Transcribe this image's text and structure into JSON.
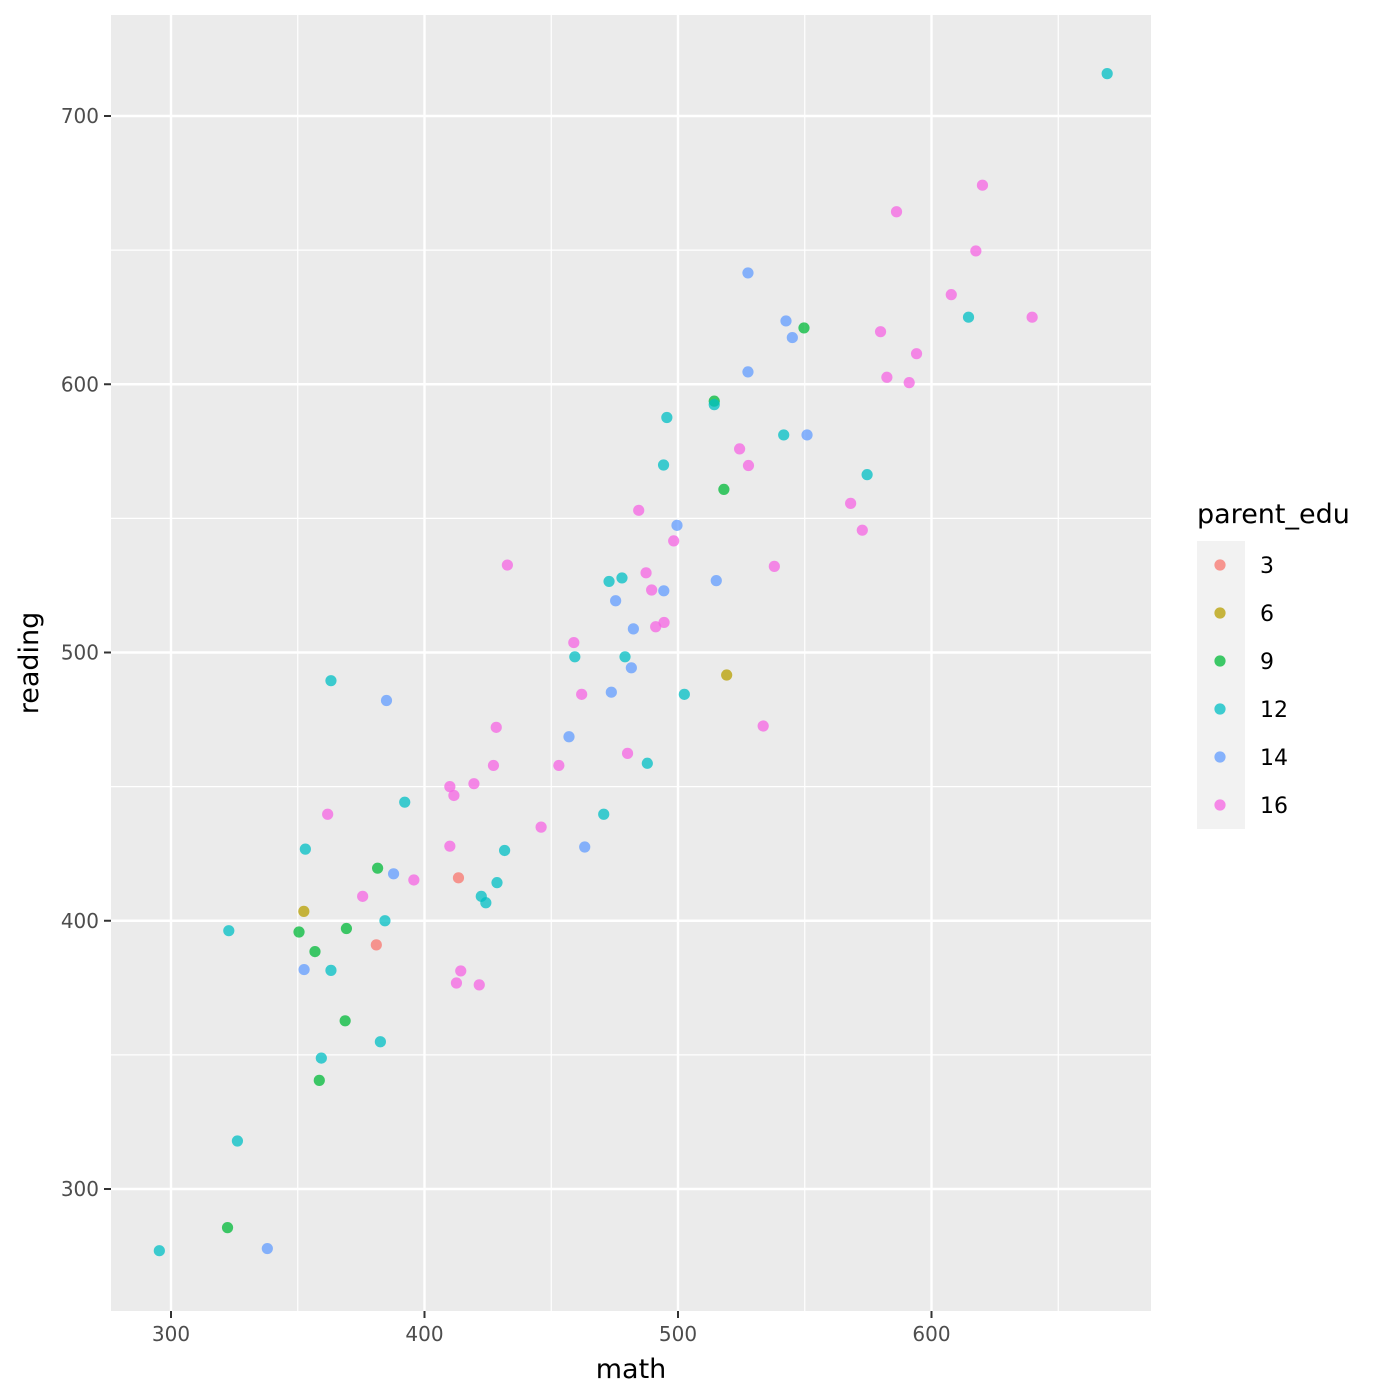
{
  "chart_data": {
    "type": "scatter",
    "xlabel": "math",
    "ylabel": "reading",
    "xlim": [
      277,
      686
    ],
    "ylim": [
      258,
      736
    ],
    "x_ticks": [
      300,
      400,
      500,
      600
    ],
    "y_ticks": [
      300,
      400,
      500,
      600,
      700
    ],
    "grid": true,
    "legend": {
      "title": "parent_edu",
      "placement": "right",
      "entries": [
        {
          "label": "3",
          "color": "#F8766D"
        },
        {
          "label": "6",
          "color": "#B79F00"
        },
        {
          "label": "9",
          "color": "#00BA38"
        },
        {
          "label": "12",
          "color": "#00BFC4"
        },
        {
          "label": "14",
          "color": "#619CFF"
        },
        {
          "label": "16",
          "color": "#F564E3"
        }
      ]
    },
    "series": [
      {
        "name": "3",
        "color": "#F8766D",
        "points": [
          [
            413.4,
            416.0
          ],
          [
            381.0,
            391.0
          ]
        ]
      },
      {
        "name": "6",
        "color": "#B79F00",
        "points": [
          [
            352.4,
            403.5
          ],
          [
            519.2,
            491.6
          ]
        ]
      },
      {
        "name": "9",
        "color": "#00BA38",
        "points": [
          [
            350.5,
            395.8
          ],
          [
            356.8,
            388.5
          ],
          [
            369.2,
            397.1
          ],
          [
            381.5,
            419.6
          ],
          [
            368.7,
            362.7
          ],
          [
            358.5,
            340.5
          ],
          [
            322.3,
            285.6
          ],
          [
            514.3,
            593.7
          ],
          [
            518.1,
            560.8
          ],
          [
            549.7,
            621.0
          ]
        ]
      },
      {
        "name": "12",
        "color": "#00BFC4",
        "points": [
          [
            295.4,
            277.0
          ],
          [
            326.2,
            317.9
          ],
          [
            322.8,
            396.3
          ],
          [
            353.0,
            426.7
          ],
          [
            363.1,
            489.5
          ],
          [
            363.1,
            381.5
          ],
          [
            359.3,
            348.8
          ],
          [
            382.6,
            354.9
          ],
          [
            384.4,
            400.0
          ],
          [
            392.2,
            444.2
          ],
          [
            422.4,
            409.1
          ],
          [
            424.2,
            406.7
          ],
          [
            428.6,
            414.2
          ],
          [
            431.6,
            426.2
          ],
          [
            459.3,
            498.4
          ],
          [
            470.7,
            439.7
          ],
          [
            472.8,
            526.5
          ],
          [
            477.9,
            527.8
          ],
          [
            479.1,
            498.4
          ],
          [
            487.9,
            458.7
          ],
          [
            494.3,
            569.9
          ],
          [
            495.6,
            587.6
          ],
          [
            502.5,
            484.4
          ],
          [
            514.3,
            592.4
          ],
          [
            541.7,
            581.1
          ],
          [
            574.6,
            566.3
          ],
          [
            614.6,
            625.0
          ],
          [
            669.3,
            715.8
          ]
        ]
      },
      {
        "name": "14",
        "color": "#619CFF",
        "points": [
          [
            338.0,
            277.8
          ],
          [
            352.5,
            381.8
          ],
          [
            385.0,
            482.1
          ],
          [
            387.8,
            417.5
          ],
          [
            457.0,
            468.6
          ],
          [
            463.2,
            427.5
          ],
          [
            473.7,
            485.2
          ],
          [
            475.4,
            519.3
          ],
          [
            481.6,
            494.3
          ],
          [
            482.4,
            508.8
          ],
          [
            494.4,
            523.0
          ],
          [
            499.6,
            547.4
          ],
          [
            515.1,
            526.8
          ],
          [
            527.6,
            641.5
          ],
          [
            527.6,
            604.6
          ],
          [
            542.6,
            623.6
          ],
          [
            545.1,
            617.4
          ],
          [
            550.9,
            581.1
          ]
        ]
      },
      {
        "name": "16",
        "color": "#F564E3",
        "points": [
          [
            361.8,
            439.7
          ],
          [
            375.6,
            409.1
          ],
          [
            395.8,
            415.2
          ],
          [
            410.0,
            450.0
          ],
          [
            410.0,
            427.8
          ],
          [
            411.6,
            446.7
          ],
          [
            412.6,
            376.8
          ],
          [
            414.3,
            381.3
          ],
          [
            419.5,
            451.1
          ],
          [
            421.6,
            376.1
          ],
          [
            427.2,
            457.9
          ],
          [
            428.3,
            472.1
          ],
          [
            432.7,
            532.6
          ],
          [
            446.0,
            434.9
          ],
          [
            453.0,
            457.9
          ],
          [
            458.9,
            503.7
          ],
          [
            462.0,
            484.4
          ],
          [
            480.1,
            462.4
          ],
          [
            484.5,
            553.0
          ],
          [
            487.4,
            529.7
          ],
          [
            489.6,
            523.3
          ],
          [
            491.2,
            509.6
          ],
          [
            494.5,
            511.2
          ],
          [
            498.3,
            541.6
          ],
          [
            524.3,
            575.9
          ],
          [
            527.8,
            569.7
          ],
          [
            533.6,
            472.6
          ],
          [
            538.0,
            532.1
          ],
          [
            568.1,
            555.6
          ],
          [
            572.7,
            545.6
          ],
          [
            579.9,
            619.6
          ],
          [
            582.4,
            602.6
          ],
          [
            586.2,
            664.3
          ],
          [
            591.2,
            600.6
          ],
          [
            594.1,
            611.4
          ],
          [
            607.8,
            633.4
          ],
          [
            617.5,
            649.7
          ],
          [
            620.1,
            674.2
          ],
          [
            639.7,
            625.0
          ]
        ]
      }
    ]
  }
}
